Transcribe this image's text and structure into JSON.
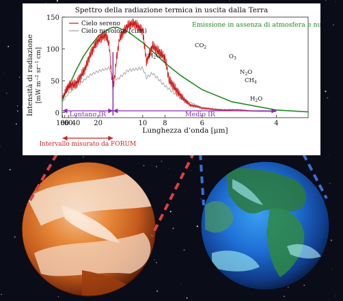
{
  "chart_data": {
    "type": "line",
    "title": "Spettro della radiazione termica in uscita dalla Terra",
    "xlabel": "Lunghezza d’onda [μm]",
    "ylabel_main": "Intensità di radiazione",
    "ylabel_unit_parts": [
      "[mW m",
      "−2",
      " sr",
      "−1",
      " cm]"
    ],
    "x_scale": "reciprocal",
    "xlim": [
      104,
      3.5
    ],
    "ylim": [
      -8,
      150
    ],
    "x_ticks": [
      100,
      80,
      60,
      40,
      20,
      10,
      8,
      6,
      4
    ],
    "y_ticks": [
      0,
      50,
      100,
      150
    ],
    "grid": false,
    "legend_position": "top-left",
    "series": [
      {
        "name": "Cielo sereno",
        "style": "red-jagged-absorption-spectrum",
        "x": [
          100,
          80,
          60,
          50,
          40,
          32,
          28,
          25,
          22,
          20,
          18,
          17,
          16,
          15.5,
          15,
          14.5,
          14.2,
          13.5,
          12,
          11,
          10,
          9.6,
          9,
          8,
          7.7,
          7,
          6.5,
          6,
          5,
          4
        ],
        "y": [
          20,
          28,
          40,
          45,
          50,
          64,
          72,
          85,
          98,
          108,
          118,
          122,
          110,
          70,
          45,
          65,
          88,
          120,
          132,
          135,
          130,
          85,
          110,
          80,
          45,
          30,
          12,
          6,
          4,
          2
        ]
      },
      {
        "name": "Cielo nuvoloso (cirri)",
        "style": "gray-lower-trace",
        "x": [
          100,
          80,
          60,
          40,
          25,
          20,
          16,
          15,
          14,
          12,
          10,
          9.6,
          9,
          8,
          7,
          6,
          5,
          4
        ],
        "y": [
          16,
          22,
          30,
          40,
          58,
          65,
          70,
          55,
          52,
          66,
          70,
          55,
          62,
          42,
          22,
          8,
          3,
          1
        ]
      },
      {
        "name": "Emissione in assenza di atmosfera e nubi",
        "style": "green-smooth",
        "x": [
          104,
          100,
          80,
          60,
          40,
          30,
          25,
          20,
          16,
          15,
          14,
          12,
          10,
          9,
          8,
          7,
          6,
          5,
          4,
          3.5
        ],
        "y": [
          19,
          20,
          28,
          40,
          66,
          88,
          102,
          120,
          132,
          134,
          134,
          127,
          110,
          96,
          78,
          58,
          36,
          17,
          4,
          1
        ]
      }
    ],
    "annotations": {
      "h2o_left": {
        "main": "H",
        "sub1": "2",
        "tail": "O"
      },
      "co2": {
        "main": "CO",
        "sub1": "2"
      },
      "o3": {
        "main": "O",
        "sub1": "3"
      },
      "n2o": {
        "main": "N",
        "sub1": "2",
        "tail": "O"
      },
      "ch4": {
        "main": "CH",
        "sub1": "4"
      },
      "h2o_right": {
        "main": "H",
        "sub1": "2",
        "tail": "O"
      }
    },
    "regions": [
      {
        "label": "Lontano IR",
        "from": 100,
        "to": 15
      },
      {
        "label": "Medio IR",
        "from": 15,
        "to": 4
      }
    ],
    "range_label": "Intervallo misurato da FORUM"
  },
  "colors": {
    "clear_sky": "#cc1111",
    "cloudy": "#a0a0a0",
    "no_atmosphere": "#1e8a1e",
    "regions": "#8a2bb8",
    "forum_range": "#cc2020",
    "dashed_left": "#e04040",
    "dashed_right": "#3a6fd0"
  }
}
